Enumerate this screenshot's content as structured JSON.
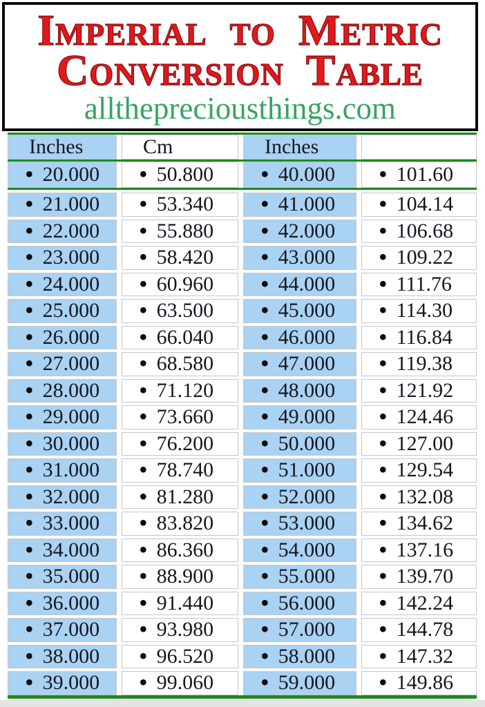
{
  "header": {
    "title_line1": "Imperial to Metric",
    "title_line2": "Conversion Table",
    "website": "allthepreciousthings.com"
  },
  "icons": {
    "bullet": "•"
  },
  "colors": {
    "title-red": "#e2181c",
    "website-green": "#37a463",
    "column-blue": "#a9d2f3",
    "line-green": "#1c8a1e",
    "text-dark": "#16161f",
    "cell-border": "#c6c6c6",
    "footer-gray": "#e3e3e3"
  },
  "table": {
    "column_headers": [
      "Inches",
      "Cm",
      "Inches",
      ""
    ],
    "rows": [
      [
        "20.000",
        "50.800",
        "40.000",
        "101.60"
      ],
      [
        "21.000",
        "53.340",
        "41.000",
        "104.14"
      ],
      [
        "22.000",
        "55.880",
        "42.000",
        "106.68"
      ],
      [
        "23.000",
        "58.420",
        "43.000",
        "109.22"
      ],
      [
        "24.000",
        "60.960",
        "44.000",
        "111.76"
      ],
      [
        "25.000",
        "63.500",
        "45.000",
        "114.30"
      ],
      [
        "26.000",
        "66.040",
        "46.000",
        "116.84"
      ],
      [
        "27.000",
        "68.580",
        "47.000",
        "119.38"
      ],
      [
        "28.000",
        "71.120",
        "48.000",
        "121.92"
      ],
      [
        "29.000",
        "73.660",
        "49.000",
        "124.46"
      ],
      [
        "30.000",
        "76.200",
        "50.000",
        "127.00"
      ],
      [
        "31.000",
        "78.740",
        "51.000",
        "129.54"
      ],
      [
        "32.000",
        "81.280",
        "52.000",
        "132.08"
      ],
      [
        "33.000",
        "83.820",
        "53.000",
        "134.62"
      ],
      [
        "34.000",
        "86.360",
        "54.000",
        "137.16"
      ],
      [
        "35.000",
        "88.900",
        "55.000",
        "139.70"
      ],
      [
        "36.000",
        "91.440",
        "56.000",
        "142.24"
      ],
      [
        "37.000",
        "93.980",
        "57.000",
        "144.78"
      ],
      [
        "38.000",
        "96.520",
        "58.000",
        "147.32"
      ],
      [
        "39.000",
        "99.060",
        "59.000",
        "149.86"
      ]
    ]
  }
}
